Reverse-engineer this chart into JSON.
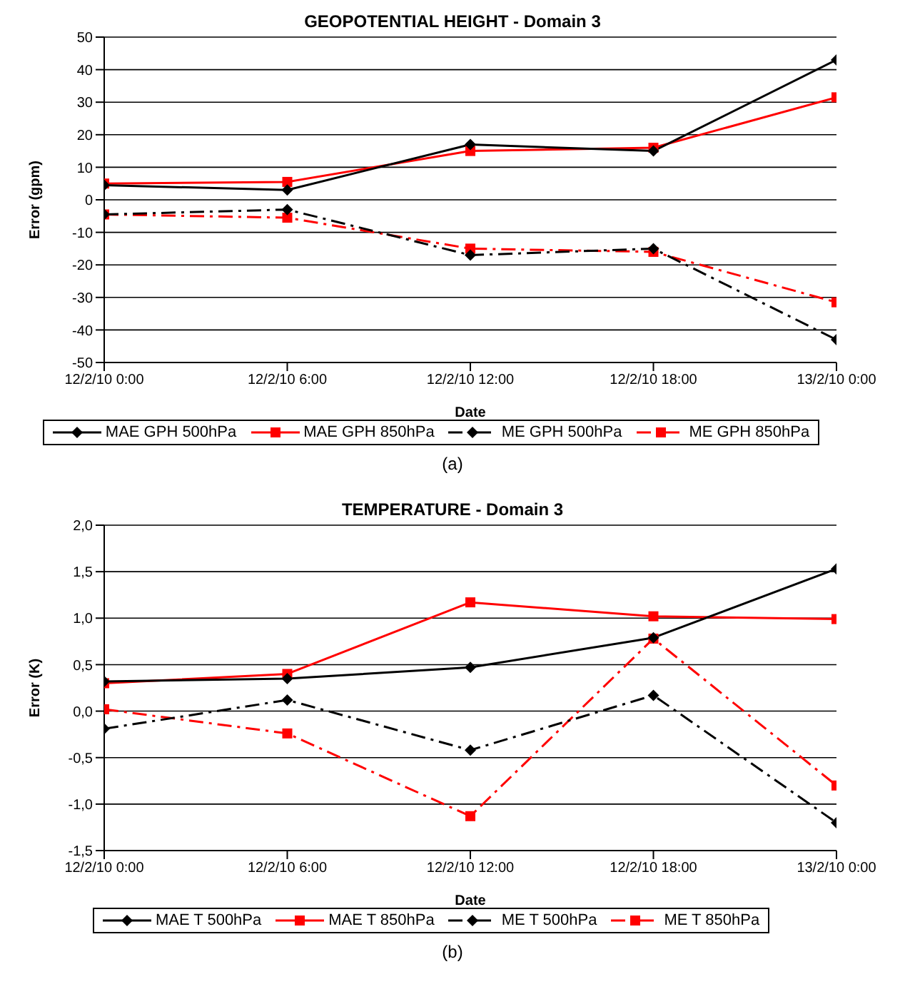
{
  "chart_data": [
    {
      "type": "line",
      "title": "GEOPOTENTIAL HEIGHT - Domain 3",
      "xlabel": "Date",
      "ylabel": "Error (gpm)",
      "categories": [
        "12/2/10 0:00",
        "12/2/10 6:00",
        "12/2/10 12:00",
        "12/2/10 18:00",
        "13/2/10 0:00"
      ],
      "series": [
        {
          "name": "MAE GPH 500hPa",
          "color": "#000000",
          "marker": "diamond",
          "line_style": "solid",
          "values": [
            4.5,
            3,
            17,
            15,
            43
          ]
        },
        {
          "name": "MAE GPH 850hPa",
          "color": "#ff0000",
          "marker": "square",
          "line_style": "solid",
          "values": [
            5,
            5.5,
            15,
            16,
            31.5
          ]
        },
        {
          "name": "ME GPH 500hPa",
          "color": "#000000",
          "marker": "diamond",
          "line_style": "dashed",
          "values": [
            -4.5,
            -3,
            -17,
            -15,
            -43
          ]
        },
        {
          "name": "ME GPH 850hPa",
          "color": "#ff0000",
          "marker": "square",
          "line_style": "dashed",
          "values": [
            -4.5,
            -5.5,
            -15,
            -16,
            -31.5
          ]
        }
      ],
      "ylim": [
        -50,
        50
      ],
      "yticks": [
        -50,
        -40,
        -30,
        -20,
        -10,
        0,
        10,
        20,
        30,
        40,
        50
      ],
      "grid": "y",
      "legend": "bottom",
      "annotations": [
        "(a)"
      ]
    },
    {
      "type": "line",
      "title": "TEMPERATURE - Domain 3",
      "xlabel": "Date",
      "ylabel": "Error (K)",
      "categories": [
        "12/2/10 0:00",
        "12/2/10 6:00",
        "12/2/10 12:00",
        "12/2/10 18:00",
        "13/2/10 0:00"
      ],
      "series": [
        {
          "name": "MAE T 500hPa",
          "color": "#000000",
          "marker": "diamond",
          "line_style": "solid",
          "values": [
            0.32,
            0.35,
            0.47,
            0.79,
            1.53
          ]
        },
        {
          "name": "MAE T 850hPa",
          "color": "#ff0000",
          "marker": "square",
          "line_style": "solid",
          "values": [
            0.3,
            0.4,
            1.17,
            1.02,
            0.99
          ]
        },
        {
          "name": "ME T 500hPa",
          "color": "#000000",
          "marker": "diamond",
          "line_style": "dashed",
          "values": [
            -0.19,
            0.12,
            -0.42,
            0.17,
            -1.2
          ]
        },
        {
          "name": "ME T 850hPa",
          "color": "#ff0000",
          "marker": "square",
          "line_style": "dashed",
          "values": [
            0.02,
            -0.24,
            -1.13,
            0.78,
            -0.8
          ]
        }
      ],
      "ylim": [
        -1.5,
        2
      ],
      "yticks": [
        {
          "value": -1.5,
          "label": "-1,5"
        },
        {
          "value": -1,
          "label": "-1,0"
        },
        {
          "value": -0.5,
          "label": "-0,5"
        },
        {
          "value": 0,
          "label": "0,0"
        },
        {
          "value": 0.5,
          "label": "0,5"
        },
        {
          "value": 1,
          "label": "1,0"
        },
        {
          "value": 1.5,
          "label": "1,5"
        },
        {
          "value": 2,
          "label": "2,0"
        }
      ],
      "grid": "y",
      "legend": "bottom",
      "annotations": [
        "(b)"
      ]
    }
  ]
}
